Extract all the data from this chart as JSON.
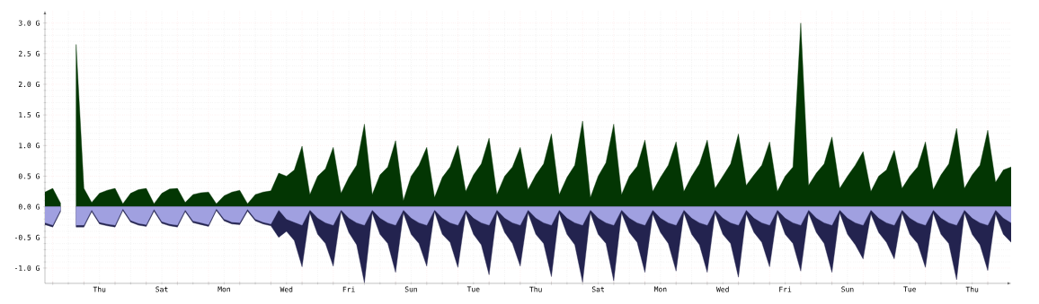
{
  "chart_data": {
    "type": "area",
    "categories": [
      null,
      null,
      null,
      null,
      null,
      null,
      null,
      "Thu",
      null,
      null,
      null,
      null,
      null,
      null,
      null,
      "Sat",
      null,
      null,
      null,
      null,
      null,
      null,
      null,
      "Mon",
      null,
      null,
      null,
      null,
      null,
      null,
      null,
      "Wed",
      null,
      null,
      null,
      null,
      null,
      null,
      null,
      "Fri",
      null,
      null,
      null,
      null,
      null,
      null,
      null,
      "Sun",
      null,
      null,
      null,
      null,
      null,
      null,
      null,
      "Tue",
      null,
      null,
      null,
      null,
      null,
      null,
      null,
      "Thu",
      null,
      null,
      null,
      null,
      null,
      null,
      null,
      "Sat",
      null,
      null,
      null,
      null,
      null,
      null,
      null,
      "Mon",
      null,
      null,
      null,
      null,
      null,
      null,
      null,
      "Wed",
      null,
      null,
      null,
      null,
      null,
      null,
      null,
      "Fri",
      null,
      null,
      null,
      null,
      null,
      null,
      null,
      "Sun",
      null,
      null,
      null,
      null,
      null,
      null,
      null,
      "Tue",
      null,
      null,
      null,
      null,
      null,
      null,
      null,
      "Thu",
      null,
      null,
      null,
      null,
      null
    ],
    "series": [
      {
        "color": "#033603",
        "values": [
          0.24,
          0.3,
          0.06,
          null,
          2.65,
          0.3,
          0.07,
          0.22,
          0.27,
          0.3,
          0.05,
          0.22,
          0.28,
          0.3,
          0.05,
          0.22,
          0.29,
          0.3,
          0.07,
          0.2,
          0.23,
          0.24,
          0.05,
          0.18,
          0.24,
          0.27,
          0.05,
          0.2,
          0.24,
          0.26,
          0.55,
          0.5,
          0.6,
          0.99,
          0.2,
          0.5,
          0.62,
          0.97,
          0.22,
          0.48,
          0.68,
          1.35,
          0.2,
          0.52,
          0.65,
          1.08,
          0.1,
          0.5,
          0.68,
          0.97,
          0.15,
          0.48,
          0.65,
          1.0,
          0.25,
          0.52,
          0.7,
          1.12,
          0.2,
          0.5,
          0.65,
          0.97,
          0.28,
          0.52,
          0.7,
          1.19,
          0.2,
          0.48,
          0.68,
          1.4,
          0.15,
          0.5,
          0.72,
          1.35,
          0.2,
          0.5,
          0.66,
          1.09,
          0.25,
          0.48,
          0.68,
          1.06,
          0.25,
          0.5,
          0.7,
          1.09,
          0.3,
          0.5,
          0.7,
          1.19,
          0.35,
          0.52,
          0.68,
          1.06,
          0.25,
          0.5,
          0.65,
          3.0,
          0.35,
          0.55,
          0.7,
          1.14,
          0.3,
          0.5,
          0.68,
          0.9,
          0.25,
          0.5,
          0.6,
          0.92,
          0.3,
          0.5,
          0.65,
          1.06,
          0.28,
          0.52,
          0.7,
          1.28,
          0.3,
          0.52,
          0.68,
          1.25,
          0.4,
          0.6,
          0.65
        ]
      },
      {
        "color": "#23234f",
        "values": [
          -0.29,
          -0.33,
          -0.08,
          null,
          -0.33,
          -0.33,
          -0.08,
          -0.28,
          -0.31,
          -0.33,
          -0.06,
          -0.25,
          -0.3,
          -0.32,
          -0.07,
          -0.27,
          -0.31,
          -0.33,
          -0.08,
          -0.26,
          -0.29,
          -0.32,
          -0.06,
          -0.23,
          -0.28,
          -0.29,
          -0.07,
          -0.23,
          -0.28,
          -0.31,
          -0.5,
          -0.4,
          -0.55,
          -0.98,
          -0.1,
          -0.45,
          -0.6,
          -0.97,
          -0.08,
          -0.42,
          -0.62,
          -1.24,
          -0.1,
          -0.45,
          -0.6,
          -1.07,
          -0.1,
          -0.45,
          -0.6,
          -0.97,
          -0.08,
          -0.45,
          -0.58,
          -0.99,
          -0.1,
          -0.45,
          -0.62,
          -1.11,
          -0.1,
          -0.42,
          -0.6,
          -0.97,
          -0.1,
          -0.45,
          -0.6,
          -1.14,
          -0.1,
          -0.45,
          -0.62,
          -1.23,
          -0.1,
          -0.45,
          -0.6,
          -1.21,
          -0.1,
          -0.42,
          -0.58,
          -1.07,
          -0.12,
          -0.42,
          -0.6,
          -1.05,
          -0.1,
          -0.45,
          -0.62,
          -1.07,
          -0.1,
          -0.45,
          -0.6,
          -1.15,
          -0.12,
          -0.42,
          -0.58,
          -0.98,
          -0.1,
          -0.45,
          -0.6,
          -1.05,
          -0.1,
          -0.42,
          -0.6,
          -1.07,
          -0.1,
          -0.45,
          -0.62,
          -0.85,
          -0.12,
          -0.42,
          -0.58,
          -0.85,
          -0.1,
          -0.45,
          -0.6,
          -0.99,
          -0.1,
          -0.45,
          -0.6,
          -1.19,
          -0.1,
          -0.45,
          -0.62,
          -1.04,
          -0.12,
          -0.45,
          -0.58
        ]
      },
      {
        "color": "#a0a0e0",
        "values": [
          -0.26,
          -0.3,
          -0.05,
          null,
          -0.3,
          -0.3,
          -0.05,
          -0.25,
          -0.28,
          -0.3,
          -0.03,
          -0.22,
          -0.27,
          -0.29,
          -0.04,
          -0.24,
          -0.28,
          -0.3,
          -0.05,
          -0.23,
          -0.26,
          -0.29,
          -0.03,
          -0.2,
          -0.25,
          -0.26,
          -0.04,
          -0.2,
          -0.25,
          -0.28,
          -0.05,
          -0.2,
          -0.25,
          -0.3,
          -0.05,
          -0.18,
          -0.26,
          -0.3,
          -0.05,
          -0.18,
          -0.26,
          -0.3,
          -0.05,
          -0.18,
          -0.26,
          -0.3,
          -0.05,
          -0.18,
          -0.26,
          -0.3,
          -0.05,
          -0.18,
          -0.26,
          -0.3,
          -0.05,
          -0.18,
          -0.26,
          -0.3,
          -0.05,
          -0.18,
          -0.26,
          -0.3,
          -0.05,
          -0.18,
          -0.26,
          -0.3,
          -0.05,
          -0.18,
          -0.26,
          -0.3,
          -0.05,
          -0.18,
          -0.26,
          -0.3,
          -0.05,
          -0.18,
          -0.26,
          -0.3,
          -0.05,
          -0.18,
          -0.26,
          -0.3,
          -0.05,
          -0.18,
          -0.26,
          -0.3,
          -0.05,
          -0.18,
          -0.26,
          -0.3,
          -0.05,
          -0.18,
          -0.26,
          -0.3,
          -0.05,
          -0.18,
          -0.26,
          -0.3,
          -0.05,
          -0.18,
          -0.26,
          -0.3,
          -0.05,
          -0.18,
          -0.26,
          -0.3,
          -0.05,
          -0.18,
          -0.26,
          -0.3,
          -0.05,
          -0.18,
          -0.26,
          -0.3,
          -0.05,
          -0.18,
          -0.26,
          -0.3,
          -0.05,
          -0.18,
          -0.26,
          -0.3,
          -0.05,
          -0.18,
          -0.26
        ]
      }
    ],
    "ylim": [
      -1.25,
      3.2
    ],
    "yticks": [
      {
        "value": -1.0,
        "label": "-1.0 G"
      },
      {
        "value": -0.5,
        "label": "-0.5 G"
      },
      {
        "value": 0.0,
        "label": "0.0 G"
      },
      {
        "value": 0.5,
        "label": "0.5 G"
      },
      {
        "value": 1.0,
        "label": "1.0 G"
      },
      {
        "value": 1.5,
        "label": "1.5 G"
      },
      {
        "value": 2.0,
        "label": "2.0 G"
      },
      {
        "value": 2.5,
        "label": "2.5 G"
      },
      {
        "value": 3.0,
        "label": "3.0 G"
      }
    ],
    "grid": true
  }
}
